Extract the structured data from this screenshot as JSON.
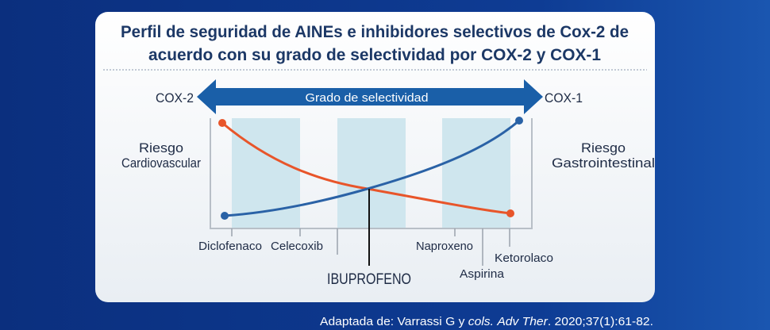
{
  "title": {
    "line1": "Perfil de seguridad de AINEs e inhibidores selectivos de Cox-2 de",
    "line2": "acuerdo con su grado de selectividad por COX-2 y COX-1"
  },
  "axis": {
    "left_label": "COX-2",
    "right_label": "COX-1",
    "arrow_label": "Grado de selectividad"
  },
  "side_labels": {
    "left_line1": "Riesgo",
    "left_line2": "Cardiovascular",
    "right_line1": "Riesgo",
    "right_line2": "Gastrointestinal"
  },
  "drugs": {
    "diclofenaco": "Diclofenaco",
    "celecoxib": "Celecoxib",
    "naproxeno": "Naproxeno",
    "ketorolaco": "Ketorolaco",
    "aspirina": "Aspirina",
    "ibuprofeno": "IBUPROFENO"
  },
  "colors": {
    "cardiovascular_curve": "#e8552a",
    "gastrointestinal_curve": "#2a62a6",
    "arrow": "#1a5fa8",
    "band": "#cfe6ee",
    "background": "#0d3a8e"
  },
  "footer": {
    "prefix": "Adaptada de: Varrassi G y ",
    "cols": "cols.",
    "journal": "Adv Ther",
    "rest": ". 2020;37(1):61-82."
  }
}
